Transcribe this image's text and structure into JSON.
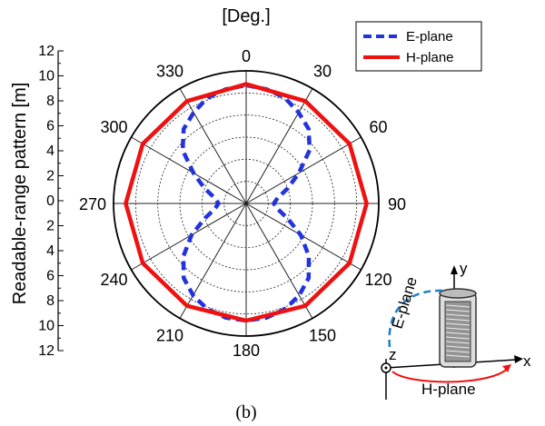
{
  "chart_data": {
    "type": "polar-line",
    "angle_unit_label": "[Deg.]",
    "radial_axis_label": "Readable-range pattern [m]",
    "radial_range": [
      0,
      12
    ],
    "radial_ticks": [
      "12",
      "10",
      "8",
      "6",
      "4",
      "2",
      "0",
      "2",
      "4",
      "6",
      "8",
      "10",
      "12"
    ],
    "angle_ticks": [
      {
        "angle": 0,
        "label": "0"
      },
      {
        "angle": 30,
        "label": "30"
      },
      {
        "angle": 60,
        "label": "60"
      },
      {
        "angle": 90,
        "label": "90"
      },
      {
        "angle": 120,
        "label": "120"
      },
      {
        "angle": 150,
        "label": "150"
      },
      {
        "angle": 180,
        "label": "180"
      },
      {
        "angle": 210,
        "label": "210"
      },
      {
        "angle": 240,
        "label": "240"
      },
      {
        "angle": 270,
        "label": "270"
      },
      {
        "angle": 300,
        "label": "300"
      },
      {
        "angle": 330,
        "label": "330"
      }
    ],
    "grid": true,
    "legend": "top-right",
    "series": [
      {
        "name": "E-plane",
        "color": "#2233dd",
        "style": "dashed",
        "points": [
          [
            0,
            10.7
          ],
          [
            10,
            10.5
          ],
          [
            20,
            10.2
          ],
          [
            30,
            9.5
          ],
          [
            40,
            8.8
          ],
          [
            50,
            7.5
          ],
          [
            60,
            5.5
          ],
          [
            70,
            4.0
          ],
          [
            80,
            2.9
          ],
          [
            90,
            2.5
          ],
          [
            100,
            2.9
          ],
          [
            110,
            4.0
          ],
          [
            120,
            5.7
          ],
          [
            130,
            7.4
          ],
          [
            140,
            8.8
          ],
          [
            150,
            9.6
          ],
          [
            160,
            10.2
          ],
          [
            170,
            10.5
          ],
          [
            180,
            10.6
          ],
          [
            190,
            10.5
          ],
          [
            200,
            10.2
          ],
          [
            210,
            9.6
          ],
          [
            220,
            8.8
          ],
          [
            230,
            7.4
          ],
          [
            240,
            5.7
          ],
          [
            250,
            4.0
          ],
          [
            260,
            2.9
          ],
          [
            270,
            2.5
          ],
          [
            280,
            2.9
          ],
          [
            290,
            4.0
          ],
          [
            300,
            5.5
          ],
          [
            310,
            7.5
          ],
          [
            320,
            8.8
          ],
          [
            330,
            9.5
          ],
          [
            340,
            10.2
          ],
          [
            350,
            10.5
          ]
        ]
      },
      {
        "name": "H-plane",
        "color": "#ee1111",
        "style": "solid",
        "points": [
          [
            0,
            10.8
          ],
          [
            30,
            10.7
          ],
          [
            60,
            10.8
          ],
          [
            90,
            10.9
          ],
          [
            120,
            10.8
          ],
          [
            150,
            10.7
          ],
          [
            180,
            10.6
          ],
          [
            210,
            10.7
          ],
          [
            240,
            10.8
          ],
          [
            270,
            10.9
          ],
          [
            300,
            10.8
          ],
          [
            330,
            10.7
          ]
        ]
      }
    ]
  },
  "inset": {
    "y_label": "y",
    "x_label": "x",
    "z_label": "z",
    "e_plane_label": "E-plane",
    "h_plane_label": "H-plane"
  },
  "caption": "(b)"
}
